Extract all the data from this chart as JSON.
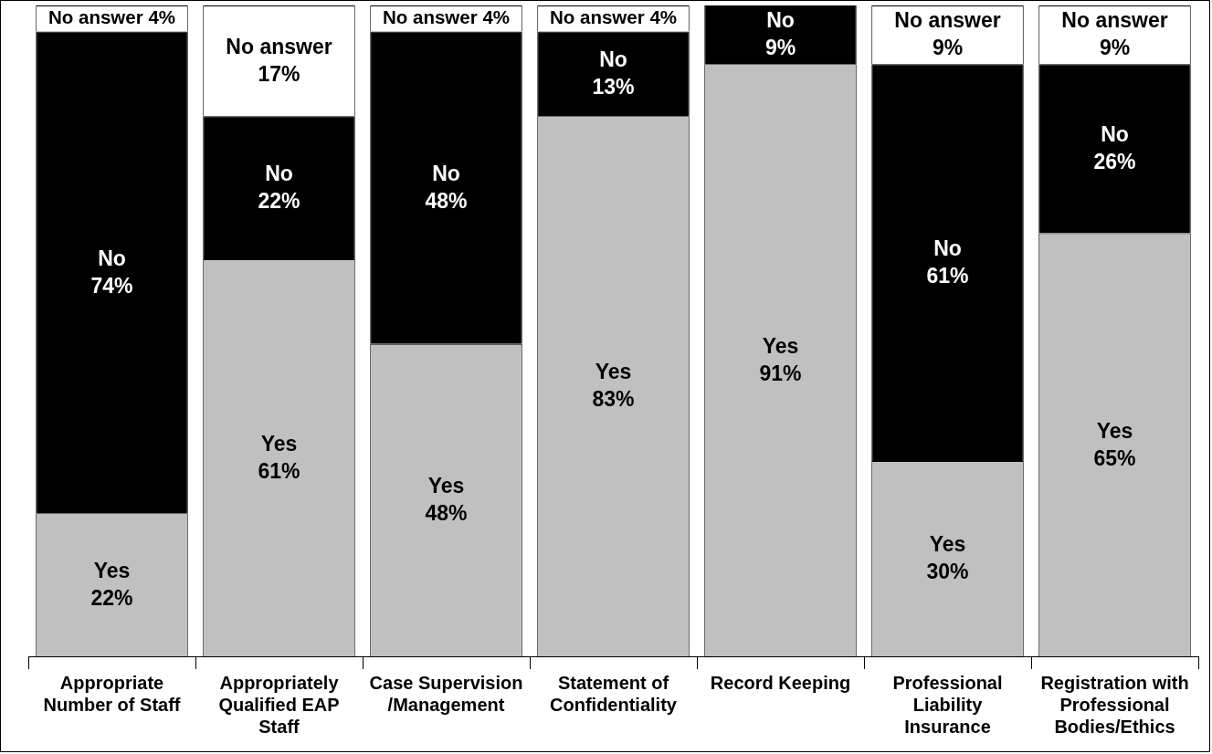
{
  "chart_data": {
    "type": "bar",
    "stacked": true,
    "categories": [
      "Appropriate Number of Staff",
      "Appropriately Qualified EAP Staff",
      "Case Supervision /Management",
      "Statement of Confidentiality",
      "Record Keeping",
      "Professional Liability Insurance",
      "Registration with Professional Bodies/Ethics"
    ],
    "ylim": [
      0,
      100
    ],
    "series": [
      {
        "name": "Yes",
        "color": "#c0c0c0",
        "values": [
          22,
          61,
          48,
          83,
          91,
          30,
          65
        ],
        "value_labels": [
          "22%",
          "61%",
          "48%",
          "83%",
          "91%",
          "30%",
          "65%"
        ]
      },
      {
        "name": "No",
        "color": "#000000",
        "values": [
          74,
          22,
          48,
          13,
          9,
          61,
          26
        ],
        "value_labels": [
          "74%",
          "22%",
          "48%",
          "13%",
          "9%",
          "61%",
          "26%"
        ]
      },
      {
        "name": "No answer",
        "color": "#ffffff",
        "values": [
          4,
          17,
          4,
          4,
          null,
          9,
          9
        ],
        "value_labels": [
          "4%",
          "17%",
          "4%",
          "4%",
          null,
          "9%",
          "9%"
        ]
      }
    ],
    "grid": false,
    "legend": false
  }
}
